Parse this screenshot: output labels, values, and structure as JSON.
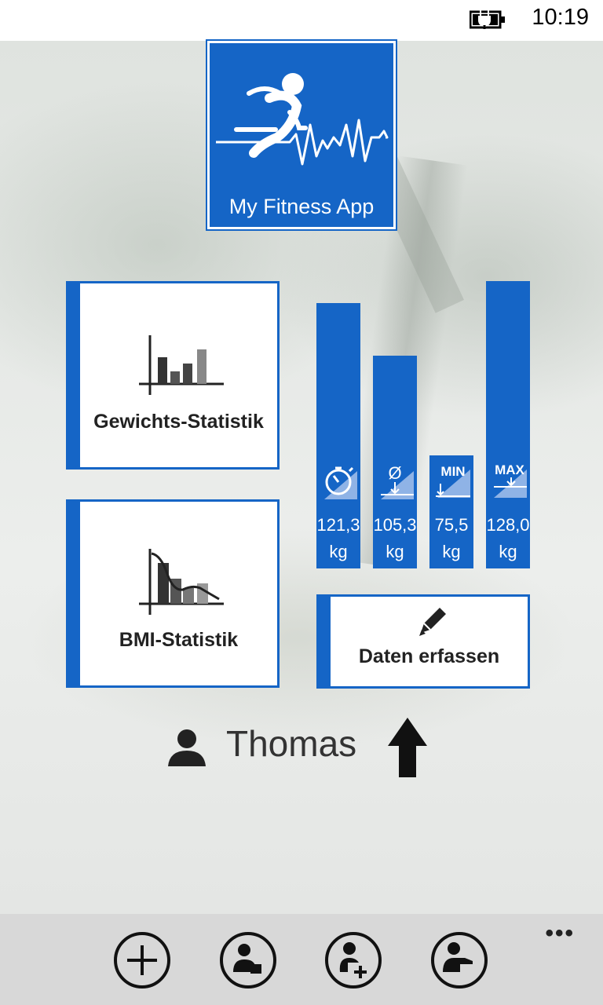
{
  "status": {
    "time": "10:19"
  },
  "app": {
    "title": "My Fitness App"
  },
  "tiles": {
    "weight_stats": "Gewichts-Statistik",
    "bmi_stats": "BMI-Statistik",
    "enter_data": "Daten erfassen"
  },
  "stats": [
    {
      "icon": "stopwatch-icon",
      "value": "121,3",
      "unit": "kg"
    },
    {
      "icon": "average-icon",
      "symbol": "Ø",
      "value": "105,3",
      "unit": "kg"
    },
    {
      "icon": "minimum-icon",
      "symbol": "MIN",
      "value": "75,5",
      "unit": "kg"
    },
    {
      "icon": "maximum-icon",
      "symbol": "MAX",
      "value": "128,0",
      "unit": "kg"
    }
  ],
  "user": {
    "name": "Thomas"
  },
  "appbar": {
    "buttons": [
      "add-icon",
      "user-edit-icon",
      "user-add-icon",
      "user-switch-icon"
    ],
    "more": "•••"
  },
  "colors": {
    "accent": "#1565c6",
    "appbar": "#d8d8d8"
  }
}
